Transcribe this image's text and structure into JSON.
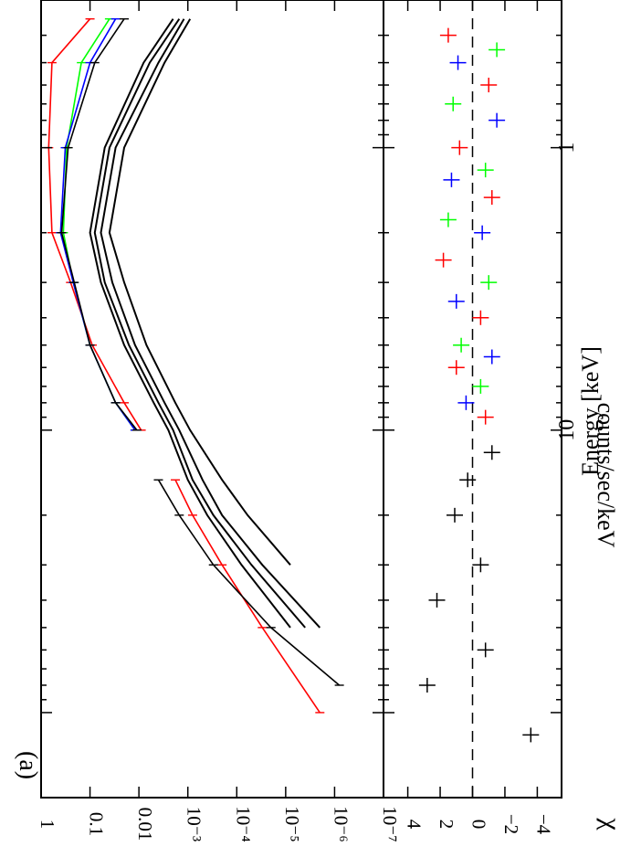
{
  "panel_label": "(a)",
  "chart_data": [
    {
      "type": "line",
      "panel": "spectrum",
      "ylabel": "counts/sec/keV",
      "yscale": "log",
      "ylim": [
        1e-07,
        1
      ],
      "xscale": "log",
      "xlim": [
        0.3,
        200
      ],
      "yticks": [
        {
          "value": 1,
          "label": "1"
        },
        {
          "value": 0.1,
          "label": "0.1"
        },
        {
          "value": 0.01,
          "label": "0.01"
        },
        {
          "value": 0.001,
          "label": "10⁻³"
        },
        {
          "value": 0.0001,
          "label": "10⁻⁴"
        },
        {
          "value": 1e-05,
          "label": "10⁻⁵"
        },
        {
          "value": 1e-06,
          "label": "10⁻⁶"
        },
        {
          "value": 1e-07,
          "label": "10⁻⁷"
        }
      ],
      "series": [
        {
          "color": "#ff0000",
          "kind": "data",
          "x": [
            0.35,
            0.5,
            1,
            2,
            3,
            5,
            8,
            10
          ],
          "y": [
            0.1,
            0.6,
            0.7,
            0.6,
            0.25,
            0.09,
            0.02,
            0.009
          ]
        },
        {
          "color": "#00ff00",
          "kind": "data",
          "x": [
            0.35,
            0.5,
            1,
            2,
            3,
            5,
            8,
            10
          ],
          "y": [
            0.04,
            0.15,
            0.3,
            0.35,
            0.22,
            0.1,
            0.03,
            0.012
          ]
        },
        {
          "color": "#0000ff",
          "kind": "data",
          "x": [
            0.35,
            0.5,
            1,
            2,
            3,
            5,
            8,
            10
          ],
          "y": [
            0.03,
            0.1,
            0.32,
            0.4,
            0.22,
            0.1,
            0.03,
            0.012
          ]
        },
        {
          "color": "#000000",
          "kind": "data",
          "x": [
            0.35,
            0.5,
            1,
            2,
            3,
            5,
            8,
            10
          ],
          "y": [
            0.02,
            0.08,
            0.28,
            0.38,
            0.21,
            0.1,
            0.03,
            0.011
          ]
        },
        {
          "color": "#ff0000",
          "kind": "data",
          "x": [
            15,
            20,
            30,
            50,
            100
          ],
          "y": [
            0.0018,
            0.0008,
            0.0002,
            3e-05,
            2e-06
          ]
        },
        {
          "color": "#000000",
          "kind": "data",
          "x": [
            15,
            20,
            30,
            50,
            80
          ],
          "y": [
            0.004,
            0.0015,
            0.0003,
            2e-05,
            8e-07
          ]
        },
        {
          "color": "#000000",
          "kind": "component",
          "x": [
            0.35,
            0.5,
            1,
            2,
            3,
            5,
            8,
            10,
            15,
            20,
            30,
            50
          ],
          "y": [
            0.002,
            0.008,
            0.05,
            0.1,
            0.06,
            0.02,
            0.005,
            0.0025,
            0.001,
            0.0004,
            8e-05,
            8e-06
          ]
        },
        {
          "color": "#000000",
          "kind": "component",
          "x": [
            0.35,
            0.5,
            1,
            2,
            3,
            5,
            8,
            10,
            15,
            20,
            30,
            50
          ],
          "y": [
            0.0015,
            0.006,
            0.04,
            0.08,
            0.05,
            0.016,
            0.004,
            0.002,
            0.0008,
            0.0003,
            5e-05,
            4e-06
          ]
        },
        {
          "color": "#000000",
          "kind": "component",
          "x": [
            0.35,
            0.5,
            1,
            2,
            3,
            5,
            8,
            10,
            15,
            20,
            30,
            50
          ],
          "y": [
            0.0012,
            0.004,
            0.03,
            0.06,
            0.035,
            0.012,
            0.003,
            0.0015,
            0.0005,
            0.0002,
            3e-05,
            2e-06
          ]
        },
        {
          "color": "#000000",
          "kind": "component",
          "x": [
            0.35,
            0.5,
            1,
            2,
            3,
            5,
            8,
            10,
            15,
            20,
            30
          ],
          "y": [
            0.0009,
            0.003,
            0.02,
            0.04,
            0.02,
            0.007,
            0.0018,
            0.0009,
            0.0002,
            6e-05,
            8e-06
          ]
        }
      ]
    },
    {
      "type": "scatter",
      "panel": "residuals",
      "xlabel": "Energy [keV]",
      "ylabel": "χ",
      "ylim": [
        -5.5,
        5.5
      ],
      "xscale": "log",
      "xlim": [
        0.3,
        200
      ],
      "xticks": [
        {
          "value": 1,
          "label": "1"
        },
        {
          "value": 10,
          "label": "10"
        }
      ],
      "yticks": [
        {
          "value": 4,
          "label": "4"
        },
        {
          "value": 2,
          "label": "2"
        },
        {
          "value": 0,
          "label": "0"
        },
        {
          "value": -2,
          "label": "−2"
        },
        {
          "value": -4,
          "label": "−4"
        }
      ],
      "reference_line": 0,
      "series": [
        {
          "color": "#ff0000",
          "x": [
            0.4,
            0.6,
            1,
            1.5,
            2.5,
            4,
            6,
            9
          ],
          "y": [
            1.5,
            -1,
            0.8,
            -1.2,
            1.8,
            -0.5,
            1,
            -0.8
          ]
        },
        {
          "color": "#00ff00",
          "x": [
            0.45,
            0.7,
            1.2,
            1.8,
            3,
            5,
            7
          ],
          "y": [
            -1.5,
            1.2,
            -0.8,
            1.5,
            -1,
            0.7,
            -0.5
          ]
        },
        {
          "color": "#0000ff",
          "x": [
            0.5,
            0.8,
            1.3,
            2,
            3.5,
            5.5,
            8
          ],
          "y": [
            0.9,
            -1.5,
            1.3,
            -0.6,
            1,
            -1.2,
            0.4
          ]
        },
        {
          "color": "#000000",
          "x": [
            12,
            15,
            20,
            30,
            40,
            60,
            80,
            120
          ],
          "y": [
            -1.2,
            0.3,
            1.1,
            -0.5,
            2.2,
            -0.8,
            2.8,
            -3.6
          ]
        }
      ]
    }
  ]
}
